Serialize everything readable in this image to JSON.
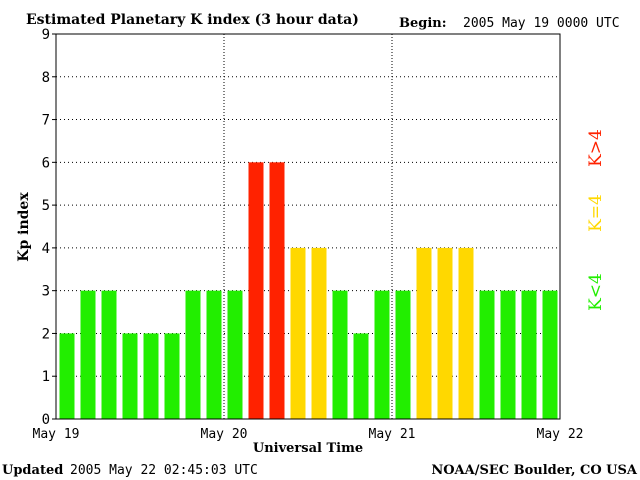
{
  "chart_data": {
    "type": "bar",
    "title": "Estimated Planetary K index (3 hour data)",
    "begin_label": "Begin:",
    "begin_value": "2005 May 19 0000 UTC",
    "ylabel": "Kp index",
    "xlabel": "Universal Time",
    "ylim": [
      0,
      9
    ],
    "yticks": [
      0,
      1,
      2,
      3,
      4,
      5,
      6,
      7,
      8,
      9
    ],
    "x_tick_labels": [
      "May 19",
      "May 20",
      "May 21",
      "May 22"
    ],
    "day_dividers_after_bar": [
      8,
      16
    ],
    "grid": "horizontal dotted",
    "values": [
      2,
      3,
      3,
      2,
      2,
      2,
      3,
      3,
      3,
      6,
      6,
      4,
      4,
      3,
      2,
      3,
      3,
      4,
      4,
      4,
      3,
      3,
      3,
      3
    ],
    "colors": {
      "low": "#22ee00",
      "mid": "#ffd800",
      "high": "#ff2200"
    },
    "legend": {
      "placement": "right",
      "items": [
        {
          "label": "K<4",
          "color": "#22ee00"
        },
        {
          "label": "K=4",
          "color": "#ffd800"
        },
        {
          "label": "K>4",
          "color": "#ff2200"
        }
      ]
    }
  },
  "footer": {
    "updated_label": "Updated",
    "updated_value": "2005 May 22 02:45:03 UTC",
    "credit": "NOAA/SEC Boulder, CO USA"
  }
}
